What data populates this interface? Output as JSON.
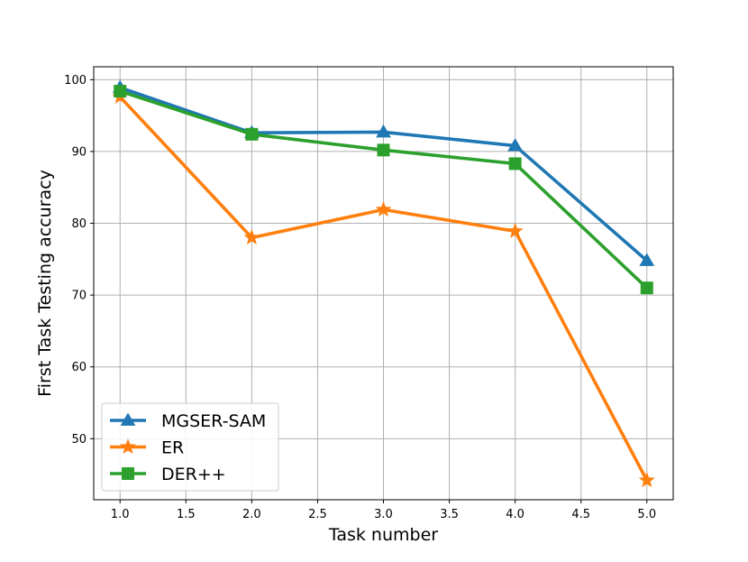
{
  "chart_data": {
    "type": "line",
    "title": "",
    "xlabel": "Task number",
    "ylabel": "First Task Testing accuracy",
    "xlim": [
      0.8,
      5.2
    ],
    "ylim": [
      41.5,
      101.8
    ],
    "xticks": [
      1.0,
      1.5,
      2.0,
      2.5,
      3.0,
      3.5,
      4.0,
      4.5,
      5.0
    ],
    "xtick_labels": [
      "1.0",
      "1.5",
      "2.0",
      "2.5",
      "3.0",
      "3.5",
      "4.0",
      "4.5",
      "5.0"
    ],
    "yticks": [
      50,
      60,
      70,
      80,
      90,
      100
    ],
    "ytick_labels": [
      "50",
      "60",
      "70",
      "80",
      "90",
      "100"
    ],
    "grid": true,
    "legend_position": "lower-left",
    "x": [
      1.0,
      2.0,
      3.0,
      4.0,
      5.0
    ],
    "series": [
      {
        "name": "MGSER-SAM",
        "values": [
          98.9,
          92.6,
          92.7,
          90.8,
          74.8
        ],
        "color": "#1f77b4",
        "marker": "triangle"
      },
      {
        "name": "ER",
        "values": [
          97.6,
          78.0,
          81.9,
          78.9,
          44.2
        ],
        "color": "#ff7f0e",
        "marker": "star"
      },
      {
        "name": "DER++",
        "values": [
          98.4,
          92.4,
          90.2,
          88.3,
          71.0
        ],
        "color": "#2ca02c",
        "marker": "square"
      }
    ]
  }
}
